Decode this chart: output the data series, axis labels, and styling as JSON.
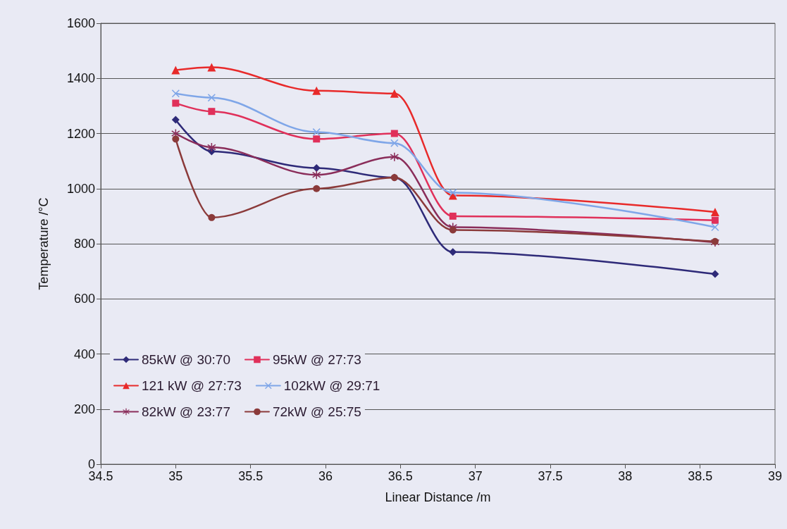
{
  "chart_data": {
    "type": "line",
    "xlabel": "Linear Distance /m",
    "ylabel": "Temperature /°C",
    "xlim": [
      34.5,
      39
    ],
    "xticks": [
      34.5,
      35,
      35.5,
      36,
      36.5,
      37,
      37.5,
      38,
      38.5,
      39
    ],
    "ylim": [
      0,
      1600
    ],
    "yticks": [
      0,
      200,
      400,
      600,
      800,
      1000,
      1200,
      1400,
      1600
    ],
    "grid": "y",
    "legend": "bottom left",
    "line_style": "solid",
    "x": [
      35,
      35.24,
      35.94,
      36.46,
      36.85,
      38.6
    ],
    "series": [
      {
        "name": "85kW @ 30:70",
        "color": "#2e2a78",
        "marker": "diamond",
        "values": [
          1250,
          1135,
          1075,
          1040,
          770,
          690
        ]
      },
      {
        "name": "95kW @ 27:73",
        "color": "#e0305a",
        "marker": "square",
        "values": [
          1310,
          1280,
          1180,
          1200,
          900,
          885
        ]
      },
      {
        "name": "121 kW @ 27:73",
        "color": "#e82a2a",
        "marker": "triangle",
        "values": [
          1430,
          1440,
          1355,
          1345,
          975,
          915
        ]
      },
      {
        "name": "102kW @ 29:71",
        "color": "#7fa6e8",
        "marker": "cross",
        "values": [
          1345,
          1330,
          1205,
          1165,
          985,
          860
        ]
      },
      {
        "name": "82kW @ 23:77",
        "color": "#8a2d5a",
        "marker": "star",
        "values": [
          1200,
          1150,
          1050,
          1115,
          860,
          805
        ]
      },
      {
        "name": "72kW @ 25:75",
        "color": "#8b3a3a",
        "marker": "circle",
        "values": [
          1180,
          895,
          1000,
          1040,
          850,
          808
        ]
      }
    ]
  }
}
